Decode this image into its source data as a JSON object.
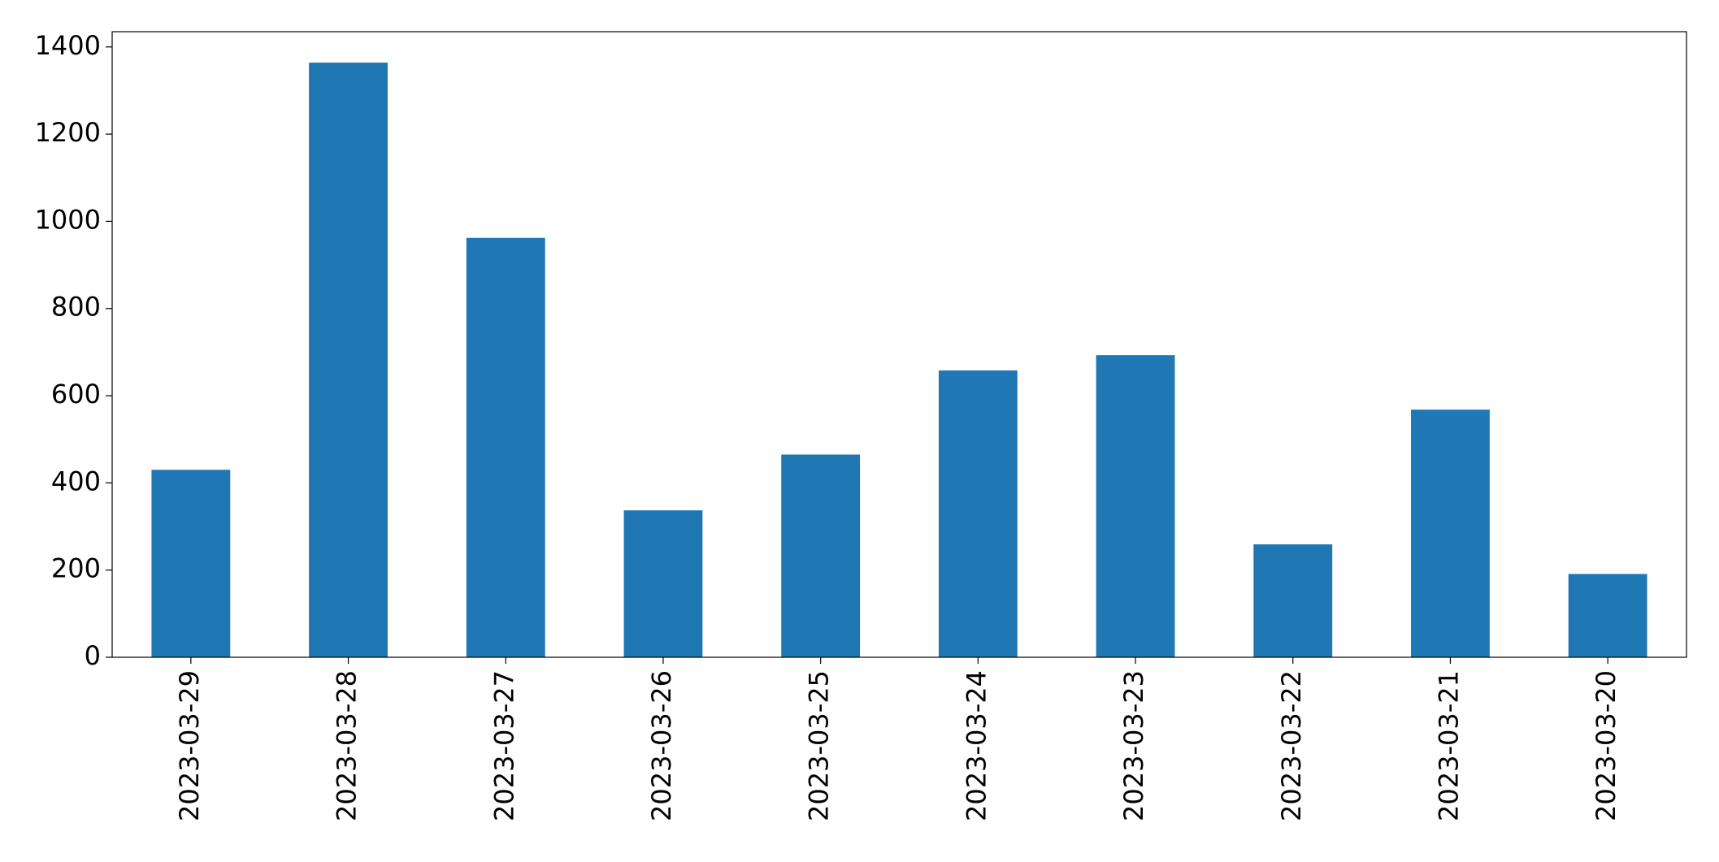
{
  "chart_data": {
    "type": "bar",
    "categories": [
      "2023-03-29",
      "2023-03-28",
      "2023-03-27",
      "2023-03-26",
      "2023-03-25",
      "2023-03-24",
      "2023-03-23",
      "2023-03-22",
      "2023-03-21",
      "2023-03-20"
    ],
    "values": [
      430,
      1364,
      962,
      337,
      465,
      658,
      693,
      259,
      568,
      191
    ],
    "color": "#1f77b4",
    "ylim": [
      0,
      1435
    ],
    "yticks": [
      0,
      200,
      400,
      600,
      800,
      1000,
      1200,
      1400
    ],
    "grid": false
  }
}
